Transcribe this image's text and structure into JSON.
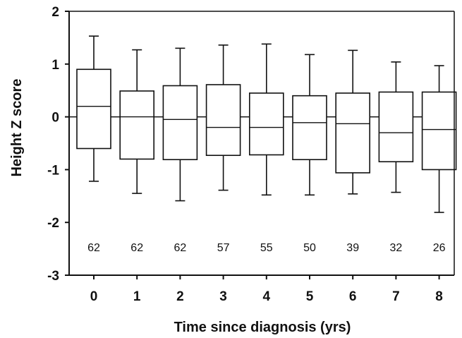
{
  "chart_data": {
    "type": "box",
    "title": "",
    "xlabel": "Time since diagnosis (yrs)",
    "ylabel": "Height Z score",
    "ylim": [
      -3,
      2
    ],
    "y_ticks": [
      "2",
      "1",
      "0",
      "-1",
      "-2",
      "-3"
    ],
    "reference_line_y": 0,
    "grid": false,
    "categories": [
      "0",
      "1",
      "2",
      "3",
      "4",
      "5",
      "6",
      "7",
      "8"
    ],
    "boxes": [
      {
        "x": "0",
        "min": -1.22,
        "q1": -0.6,
        "median": 0.2,
        "q3": 0.9,
        "max": 1.53,
        "n": "62"
      },
      {
        "x": "1",
        "min": -1.45,
        "q1": -0.8,
        "median": 0.0,
        "q3": 0.49,
        "max": 1.27,
        "n": "62"
      },
      {
        "x": "2",
        "min": -1.59,
        "q1": -0.81,
        "median": -0.05,
        "q3": 0.59,
        "max": 1.3,
        "n": "62"
      },
      {
        "x": "3",
        "min": -1.39,
        "q1": -0.73,
        "median": -0.2,
        "q3": 0.61,
        "max": 1.36,
        "n": "57"
      },
      {
        "x": "4",
        "min": -1.48,
        "q1": -0.72,
        "median": -0.2,
        "q3": 0.45,
        "max": 1.38,
        "n": "55"
      },
      {
        "x": "5",
        "min": -1.48,
        "q1": -0.81,
        "median": -0.11,
        "q3": 0.4,
        "max": 1.18,
        "n": "50"
      },
      {
        "x": "6",
        "min": -1.46,
        "q1": -1.06,
        "median": -0.13,
        "q3": 0.45,
        "max": 1.26,
        "n": "39"
      },
      {
        "x": "7",
        "min": -1.43,
        "q1": -0.85,
        "median": -0.3,
        "q3": 0.47,
        "max": 1.04,
        "n": "32"
      },
      {
        "x": "8",
        "min": -1.81,
        "q1": -1.0,
        "median": -0.24,
        "q3": 0.47,
        "max": 0.97,
        "n": "26"
      }
    ]
  }
}
